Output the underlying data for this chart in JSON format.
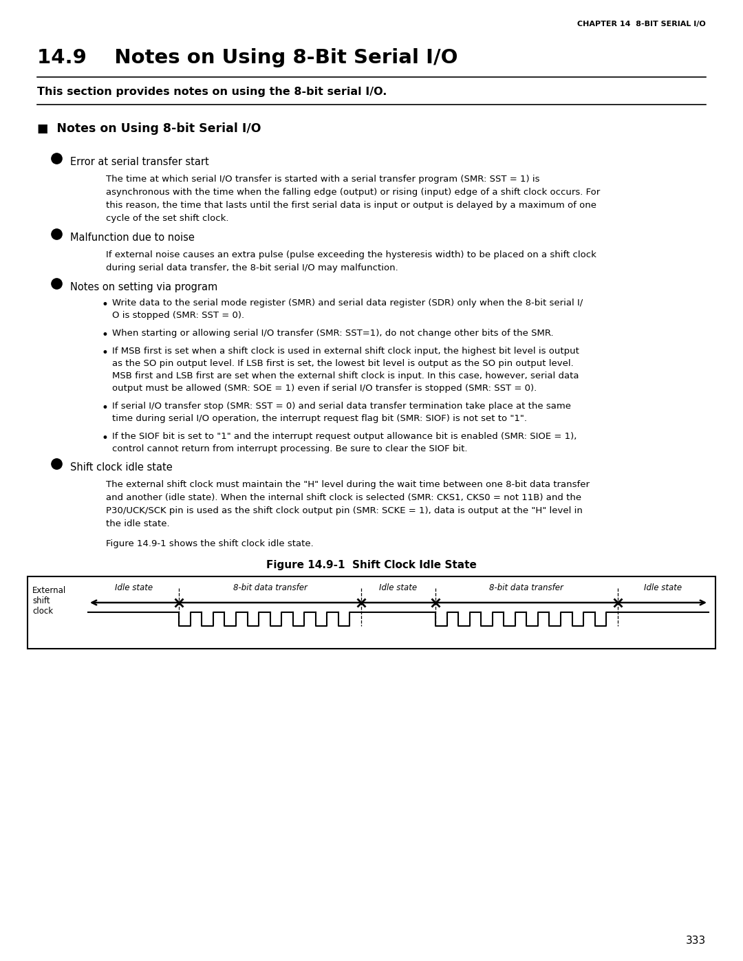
{
  "chapter_header": "CHAPTER 14  8-BIT SERIAL I/O",
  "section_title": "14.9    Notes on Using 8-Bit Serial I/O",
  "subtitle": "This section provides notes on using the 8-bit serial I/O.",
  "section_heading": "■  Notes on Using 8-bit Serial I/O",
  "bullet1_head": "Error at serial transfer start",
  "bullet1_lines": [
    "The time at which serial I/O transfer is started with a serial transfer program (SMR: SST = 1) is",
    "asynchronous with the time when the falling edge (output) or rising (input) edge of a shift clock occurs. For",
    "this reason, the time that lasts until the first serial data is input or output is delayed by a maximum of one",
    "cycle of the set shift clock."
  ],
  "bullet2_head": "Malfunction due to noise",
  "bullet2_lines": [
    "If external noise causes an extra pulse (pulse exceeding the hysteresis width) to be placed on a shift clock",
    "during serial data transfer, the 8-bit serial I/O may malfunction."
  ],
  "bullet3_head": "Notes on setting via program",
  "sub_bullets": [
    [
      "Write data to the serial mode register (SMR) and serial data register (SDR) only when the 8-bit serial I/",
      "O is stopped (SMR: SST = 0)."
    ],
    [
      "When starting or allowing serial I/O transfer (SMR: SST=1), do not change other bits of the SMR."
    ],
    [
      "If MSB first is set when a shift clock is used in external shift clock input, the highest bit level is output",
      "as the SO pin output level. If LSB first is set, the lowest bit level is output as the SO pin output level.",
      "MSB first and LSB first are set when the external shift clock is input. In this case, however, serial data",
      "output must be allowed (SMR: SOE = 1) even if serial I/O transfer is stopped (SMR: SST = 0)."
    ],
    [
      "If serial I/O transfer stop (SMR: SST = 0) and serial data transfer termination take place at the same",
      "time during serial I/O operation, the interrupt request flag bit (SMR: SIOF) is not set to \"1\"."
    ],
    [
      "If the SIOF bit is set to \"1\" and the interrupt request output allowance bit is enabled (SMR: SIOE = 1),",
      "control cannot return from interrupt processing. Be sure to clear the SIOF bit."
    ]
  ],
  "bullet4_head": "Shift clock idle state",
  "bullet4_lines": [
    "The external shift clock must maintain the \"H\" level during the wait time between one 8-bit data transfer",
    "and another (idle state). When the internal shift clock is selected (SMR: CKS1, CKS0 = not 11B) and the",
    "P30/UCK/SCK pin is used as the shift clock output pin (SMR: SCKE = 1), data is output at the \"H\" level in",
    "the idle state."
  ],
  "bullet4_text2": "Figure 14.9-1 shows the shift clock idle state.",
  "fig_caption": "Figure 14.9-1  Shift Clock Idle State",
  "fig_label": "External\nshift\nclock",
  "fig_idle1": "Idle state",
  "fig_transfer1": "8-bit data transfer",
  "fig_idle2": "Idle state",
  "fig_transfer2": "8-bit data transfer",
  "fig_idle3": "Idle state",
  "page_number": "333",
  "bg_color": "#ffffff",
  "text_color": "#000000"
}
